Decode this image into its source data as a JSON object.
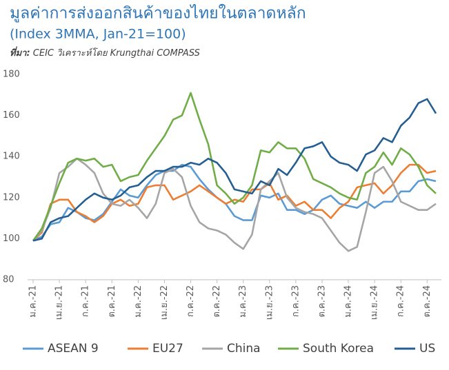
{
  "chart_data": {
    "type": "line",
    "title": "มูลค่าการส่งออกสินค้าของไทยในตลาดหลัก",
    "subtitle": "(Index 3MMA, Jan-21=100)",
    "source": {
      "label": "ที่มา:",
      "text": "CEIC วิเคราะห์โดย Krungthai COMPASS"
    },
    "categories": [
      "ม.ค.-21",
      null,
      null,
      "เม.ย.-21",
      null,
      null,
      "ก.ค.-21",
      null,
      null,
      "ต.ค.-21",
      null,
      null,
      "ม.ค.-22",
      null,
      null,
      "เม.ย.-22",
      null,
      null,
      "ก.ค.-22",
      null,
      null,
      "ต.ค.-22",
      null,
      null,
      "ม.ค.-23",
      null,
      null,
      "เม.ย.-23",
      null,
      null,
      "ก.ค.-23",
      null,
      null,
      "ต.ค.-23",
      null,
      null,
      "ม.ค.-24",
      null,
      null,
      "เม.ย.-24",
      null,
      null,
      "ก.ค.-24",
      null,
      null,
      "ต.ค.-24",
      null
    ],
    "series": [
      {
        "name": "ASEAN 9",
        "color": "#5b9bd5",
        "values": [
          99,
          101,
          107,
          108,
          115,
          113,
          110,
          109,
          112,
          118,
          124,
          121,
          120,
          126,
          131,
          133,
          133,
          136,
          135,
          129,
          124,
          120,
          117,
          111,
          109,
          109,
          121,
          120,
          122,
          114,
          114,
          112,
          114,
          119,
          121,
          117,
          116,
          115,
          118,
          115,
          118,
          118,
          123,
          123,
          128,
          129,
          128
        ]
      },
      {
        "name": "EU27",
        "color": "#ed7d31",
        "values": [
          99,
          103,
          117,
          119,
          119,
          113,
          111,
          108,
          111,
          117,
          119,
          116,
          117,
          125,
          126,
          126,
          119,
          121,
          123,
          126,
          123,
          120,
          117,
          119,
          118,
          124,
          124,
          127,
          119,
          121,
          116,
          118,
          114,
          114,
          110,
          115,
          118,
          125,
          126,
          127,
          122,
          126,
          132,
          136,
          136,
          132,
          133
        ]
      },
      {
        "name": "China",
        "color": "#a5a5a5",
        "values": [
          99,
          104,
          115,
          132,
          135,
          139,
          136,
          132,
          122,
          117,
          116,
          119,
          115,
          110,
          117,
          132,
          134,
          130,
          116,
          108,
          105,
          104,
          102,
          98,
          95,
          102,
          124,
          128,
          132,
          120,
          115,
          113,
          112,
          110,
          104,
          98,
          94,
          96,
          113,
          132,
          135,
          128,
          118,
          116,
          114,
          114,
          117
        ]
      },
      {
        "name": "South Korea",
        "color": "#70ad47",
        "values": [
          99,
          105,
          116,
          127,
          137,
          139,
          138,
          139,
          135,
          136,
          128,
          130,
          131,
          138,
          144,
          150,
          158,
          160,
          171,
          158,
          146,
          126,
          122,
          117,
          120,
          126,
          143,
          142,
          147,
          144,
          144,
          139,
          129,
          127,
          125,
          122,
          120,
          119,
          132,
          135,
          142,
          136,
          144,
          141,
          135,
          126,
          122
        ]
      },
      {
        "name": "US",
        "color": "#255e91",
        "values": [
          99,
          100,
          108,
          110,
          111,
          115,
          119,
          122,
          120,
          119,
          121,
          125,
          126,
          130,
          133,
          133,
          135,
          135,
          137,
          136,
          139,
          137,
          132,
          124,
          123,
          122,
          128,
          126,
          134,
          131,
          137,
          144,
          145,
          147,
          140,
          137,
          136,
          133,
          141,
          143,
          149,
          147,
          155,
          159,
          166,
          168,
          161
        ]
      }
    ],
    "ylim": [
      80,
      180
    ],
    "yticks": [
      80,
      100,
      120,
      140,
      160,
      180
    ],
    "grid": false,
    "legend": "bottom"
  }
}
